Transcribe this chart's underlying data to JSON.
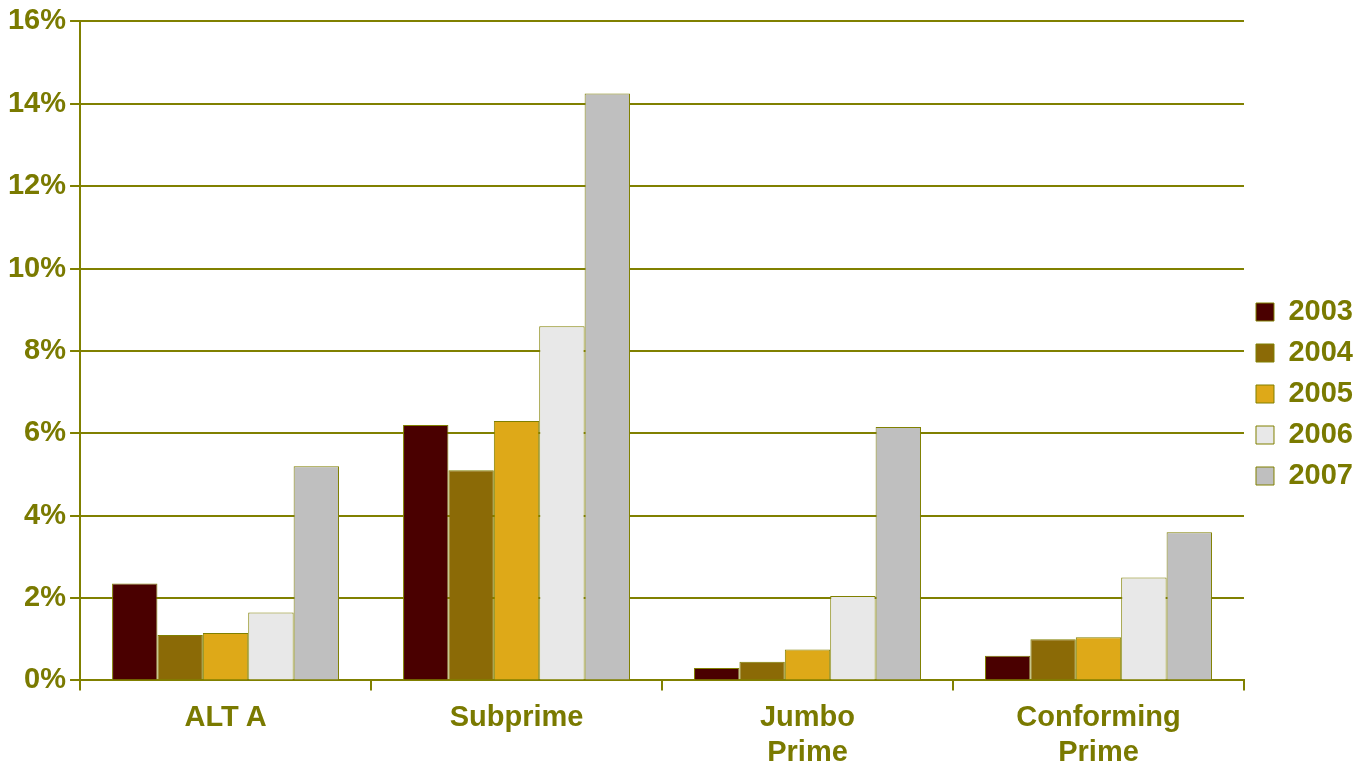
{
  "chart_data": {
    "type": "bar",
    "categories": [
      "ALT A",
      "Subprime",
      "Jumbo\nPrime",
      "Conforming\nPrime"
    ],
    "series": [
      {
        "name": "2003",
        "color": "#4a0000",
        "values": [
          2.35,
          6.2,
          0.3,
          0.6
        ]
      },
      {
        "name": "2004",
        "color": "#8b6a06",
        "values": [
          1.1,
          5.1,
          0.45,
          1.0
        ]
      },
      {
        "name": "2005",
        "color": "#dea918",
        "values": [
          1.15,
          6.3,
          0.75,
          1.05
        ]
      },
      {
        "name": "2006",
        "color": "#e8e8e8",
        "values": [
          1.65,
          8.6,
          2.05,
          2.5
        ]
      },
      {
        "name": "2007",
        "color": "#bfbfbf",
        "values": [
          5.2,
          14.25,
          6.15,
          3.6
        ]
      }
    ],
    "ylim": [
      0,
      16
    ],
    "yticks": [
      {
        "value": 0,
        "label": "0%"
      },
      {
        "value": 2,
        "label": "2%"
      },
      {
        "value": 4,
        "label": "4%"
      },
      {
        "value": 6,
        "label": "6%"
      },
      {
        "value": 8,
        "label": "8%"
      },
      {
        "value": 10,
        "label": "10%"
      },
      {
        "value": 12,
        "label": "12%"
      },
      {
        "value": 14,
        "label": "14%"
      },
      {
        "value": 16,
        "label": "16%"
      }
    ],
    "grid": "y",
    "legend": "right"
  }
}
